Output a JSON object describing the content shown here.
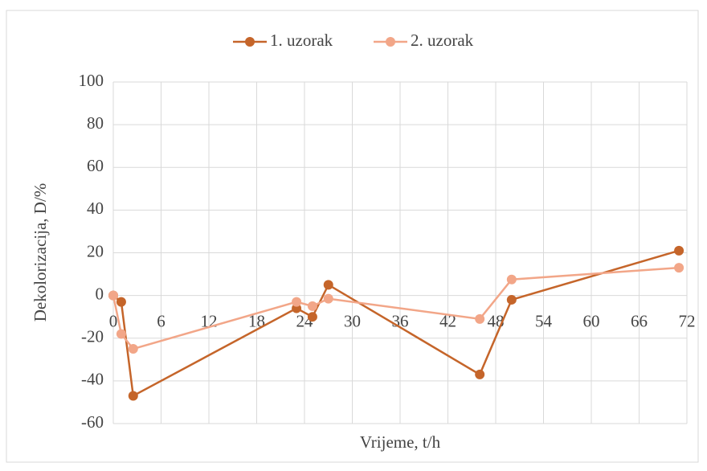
{
  "chart_data": {
    "type": "line",
    "x_label": "Vrijeme, t/h",
    "y_label": "Dekolorizacija, D/%",
    "xlim": [
      0,
      72
    ],
    "xticks": [
      0,
      6,
      12,
      18,
      24,
      30,
      36,
      42,
      48,
      54,
      60,
      66,
      72
    ],
    "ylim": [
      -60,
      100
    ],
    "yticks": [
      -60,
      -40,
      -20,
      0,
      20,
      40,
      60,
      80,
      100
    ],
    "grid": true,
    "legend": "top",
    "series": [
      {
        "name": "1. uzorak",
        "color": "#c5652a",
        "x": [
          0,
          1,
          2.5,
          23,
          25,
          27,
          46,
          50,
          71
        ],
        "values": [
          0,
          -3,
          -47,
          -6,
          -10,
          5,
          -37,
          -2,
          21
        ]
      },
      {
        "name": "2. uzorak",
        "color": "#f2a688",
        "x": [
          0,
          1,
          2.5,
          23,
          25,
          27,
          46,
          50,
          71
        ],
        "values": [
          0,
          -18,
          -25,
          -3,
          -5,
          -1.5,
          -11,
          7.5,
          13
        ]
      }
    ]
  }
}
